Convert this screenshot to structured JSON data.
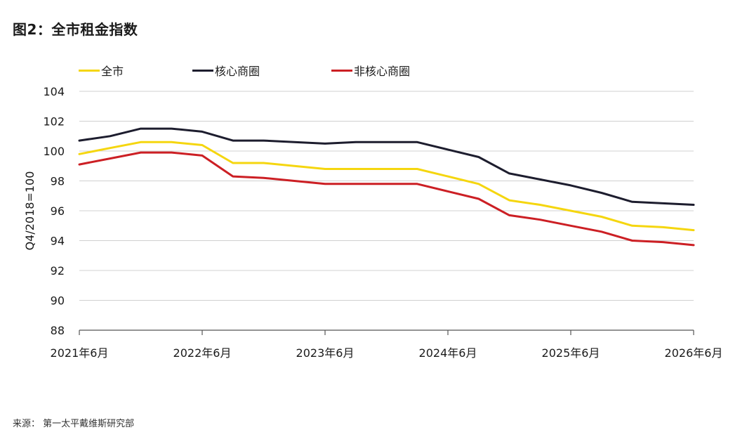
{
  "figure": {
    "title": "图2：全市租金指数",
    "source": "来源： 第一太平戴维斯研究部"
  },
  "chart_data": {
    "type": "line",
    "title": "图2：全市租金指数",
    "ylabel": "Q4/2018=100",
    "xlabel": "",
    "ylim": [
      88,
      104
    ],
    "yticks": [
      88,
      90,
      92,
      94,
      96,
      98,
      100,
      102,
      104
    ],
    "xtick_labels": [
      "2021年6月",
      "2022年6月",
      "2023年6月",
      "2024年6月",
      "2025年6月",
      "2026年6月"
    ],
    "grid": true,
    "legend_position": "top",
    "x": [
      "2021Q2",
      "2021Q3",
      "2021Q4",
      "2022Q1",
      "2022Q2",
      "2022Q3",
      "2022Q4",
      "2023Q1",
      "2023Q2",
      "2023Q3",
      "2023Q4",
      "2024Q1",
      "2024Q2",
      "2024Q3",
      "2024Q4",
      "2025Q1",
      "2025Q2",
      "2025Q3",
      "2025Q4",
      "2026Q1",
      "2026Q2"
    ],
    "series": [
      {
        "name": "全市",
        "color": "#f5d60f",
        "values": [
          99.8,
          100.2,
          100.6,
          100.6,
          100.4,
          99.2,
          99.2,
          99.0,
          98.8,
          98.8,
          98.8,
          98.8,
          98.3,
          97.8,
          96.7,
          96.4,
          96.0,
          95.6,
          95.0,
          94.9,
          94.7
        ]
      },
      {
        "name": "核心商圈",
        "color": "#1d1d2e",
        "values": [
          100.7,
          101.0,
          101.5,
          101.5,
          101.3,
          100.7,
          100.7,
          100.6,
          100.5,
          100.6,
          100.6,
          100.6,
          100.1,
          99.6,
          98.5,
          98.1,
          97.7,
          97.2,
          96.6,
          96.5,
          96.4
        ]
      },
      {
        "name": "非核心商圈",
        "color": "#cc1f24",
        "values": [
          99.1,
          99.5,
          99.9,
          99.9,
          99.7,
          98.3,
          98.2,
          98.0,
          97.8,
          97.8,
          97.8,
          97.8,
          97.3,
          96.8,
          95.7,
          95.4,
          95.0,
          94.6,
          94.0,
          93.9,
          93.7
        ]
      }
    ]
  }
}
